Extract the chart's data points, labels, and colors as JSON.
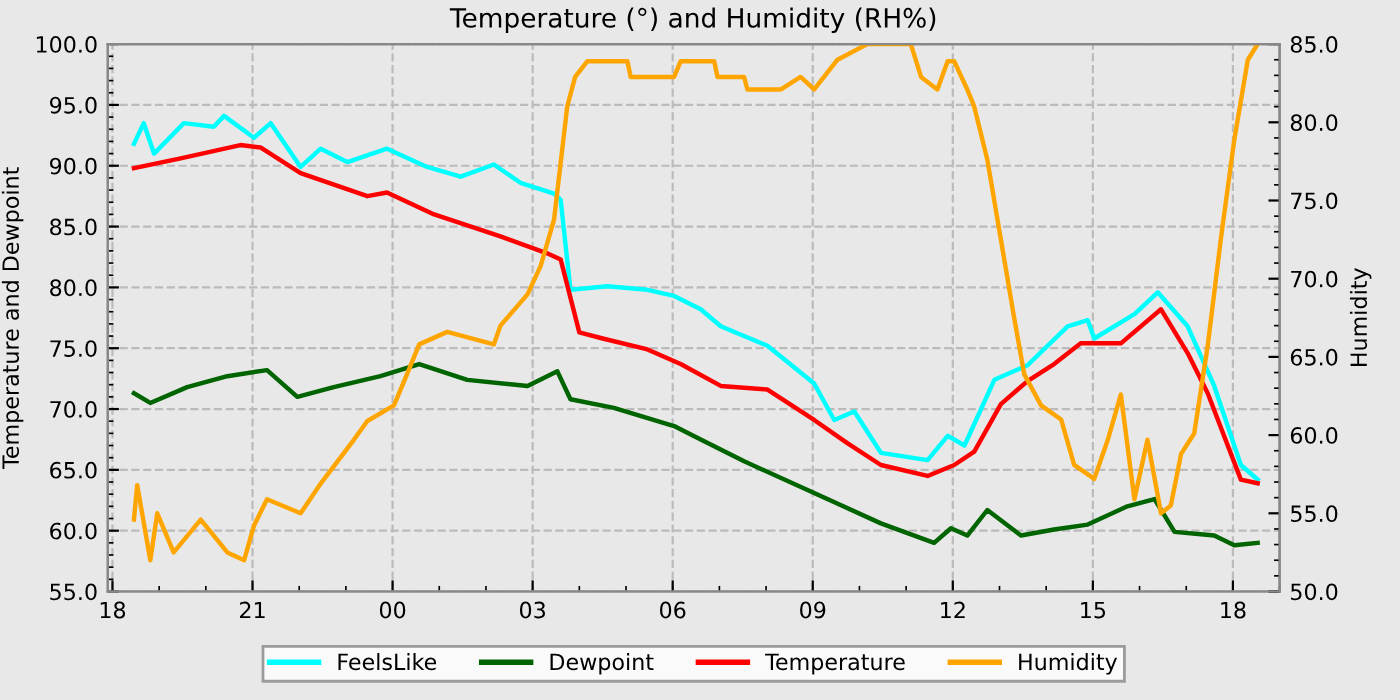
{
  "chart_data": {
    "type": "line",
    "title": "Temperature (°) and Humidity (RH%)",
    "ylabel": "Temperature and Dewpoint",
    "y2label": "Humidity",
    "xlim": [
      17.9,
      43.0
    ],
    "xticks": [
      {
        "value": 18,
        "label": "18"
      },
      {
        "value": 21,
        "label": "21"
      },
      {
        "value": 24,
        "label": "00"
      },
      {
        "value": 27,
        "label": "03"
      },
      {
        "value": 30,
        "label": "06"
      },
      {
        "value": 33,
        "label": "09"
      },
      {
        "value": 36,
        "label": "12"
      },
      {
        "value": 39,
        "label": "15"
      },
      {
        "value": 42,
        "label": "18"
      }
    ],
    "ylim": [
      55,
      100
    ],
    "yticks": [
      {
        "value": 55,
        "label": "55.0"
      },
      {
        "value": 60,
        "label": "60.0"
      },
      {
        "value": 65,
        "label": "65.0"
      },
      {
        "value": 70,
        "label": "70.0"
      },
      {
        "value": 75,
        "label": "75.0"
      },
      {
        "value": 80,
        "label": "80.0"
      },
      {
        "value": 85,
        "label": "85.0"
      },
      {
        "value": 90,
        "label": "90.0"
      },
      {
        "value": 95,
        "label": "95.0"
      },
      {
        "value": 100,
        "label": "100.0"
      }
    ],
    "y2lim": [
      50,
      85
    ],
    "y2ticks": [
      {
        "value": 50,
        "label": "50.0"
      },
      {
        "value": 55,
        "label": "55.0"
      },
      {
        "value": 60,
        "label": "60.0"
      },
      {
        "value": 65,
        "label": "65.0"
      },
      {
        "value": 70,
        "label": "70.0"
      },
      {
        "value": 75,
        "label": "75.0"
      },
      {
        "value": 80,
        "label": "80.0"
      },
      {
        "value": 85,
        "label": "85.0"
      }
    ],
    "grid": true,
    "legend": "bottom",
    "marker": "none",
    "line_style": "solid",
    "series": [
      {
        "name": "FeelsLike",
        "color": "#00ffff",
        "x": [
          18.46,
          18.67,
          18.89,
          19.53,
          20.17,
          20.39,
          21.03,
          21.39,
          22.03,
          22.46,
          23.03,
          23.88,
          24.74,
          25.46,
          26.17,
          26.74,
          27.46,
          27.6,
          27.81,
          28.6,
          29.46,
          30.03,
          30.6,
          31.03,
          32.03,
          33.03,
          33.46,
          33.89,
          34.46,
          35.46,
          35.89,
          36.25,
          36.89,
          37.6,
          38.46,
          38.89,
          39.03,
          39.89,
          40.39,
          41.03,
          41.6,
          42.17,
          42.53
        ],
        "values": [
          91.8,
          93.5,
          91.0,
          93.5,
          93.2,
          94.1,
          92.3,
          93.5,
          89.9,
          91.4,
          90.3,
          91.4,
          89.9,
          89.1,
          90.1,
          88.6,
          87.7,
          87.2,
          79.8,
          80.1,
          79.8,
          79.3,
          78.2,
          76.8,
          75.2,
          72.1,
          69.1,
          69.8,
          66.4,
          65.8,
          67.8,
          67.0,
          72.4,
          73.6,
          76.8,
          77.3,
          75.8,
          77.8,
          79.6,
          76.8,
          71.9,
          65.4,
          64.2
        ]
      },
      {
        "name": "Dewpoint",
        "color": "#006400",
        "x": [
          18.46,
          18.81,
          19.6,
          20.46,
          21.31,
          21.96,
          22.74,
          23.74,
          24.57,
          25.6,
          26.89,
          27.53,
          27.81,
          28.74,
          30.03,
          30.6,
          31.53,
          33.03,
          34.46,
          35.6,
          35.96,
          36.31,
          36.74,
          37.46,
          38.17,
          38.89,
          39.74,
          40.32,
          40.75,
          41.6,
          42.03,
          42.53
        ],
        "values": [
          71.3,
          70.5,
          71.8,
          72.7,
          73.2,
          71.0,
          71.8,
          72.7,
          73.7,
          72.4,
          71.9,
          73.1,
          70.8,
          70.1,
          68.6,
          67.5,
          65.7,
          63.1,
          60.6,
          59.0,
          60.2,
          59.6,
          61.7,
          59.6,
          60.1,
          60.5,
          62.0,
          62.6,
          59.9,
          59.6,
          58.8,
          59.0
        ]
      },
      {
        "name": "Temperature",
        "color": "#ff0000",
        "x": [
          18.46,
          19.46,
          20.74,
          21.17,
          22.03,
          23.46,
          23.88,
          24.89,
          26.31,
          27.31,
          27.6,
          28.0,
          28.5,
          29.46,
          30.17,
          31.03,
          32.03,
          33.03,
          33.74,
          34.46,
          35.46,
          36.03,
          36.46,
          37.03,
          37.6,
          38.17,
          38.74,
          39.6,
          40.46,
          41.03,
          41.46,
          42.17,
          42.53
        ],
        "values": [
          89.8,
          90.6,
          91.7,
          91.5,
          89.4,
          87.5,
          87.8,
          86.0,
          84.2,
          82.8,
          82.3,
          76.3,
          75.8,
          74.9,
          73.7,
          71.9,
          71.6,
          69.1,
          67.2,
          65.4,
          64.5,
          65.4,
          66.5,
          70.4,
          72.3,
          73.7,
          75.4,
          75.4,
          78.2,
          74.6,
          71.3,
          64.2,
          63.9
        ]
      },
      {
        "name": "Humidity",
        "color": "#ffa500",
        "axis": "y2",
        "x": [
          18.46,
          18.53,
          18.81,
          18.96,
          19.31,
          19.89,
          20.46,
          20.82,
          21.03,
          21.31,
          22.03,
          22.46,
          23.17,
          23.46,
          24.03,
          24.31,
          24.57,
          25.17,
          26.17,
          26.31,
          26.89,
          27.17,
          27.46,
          27.74,
          27.91,
          28.17,
          29.03,
          29.1,
          30.03,
          30.17,
          30.89,
          30.96,
          31.53,
          31.6,
          32.32,
          32.74,
          33.03,
          33.53,
          34.17,
          35.1,
          35.32,
          35.67,
          35.89,
          36.03,
          36.31,
          36.46,
          36.74,
          37.03,
          37.32,
          37.53,
          37.89,
          38.32,
          38.6,
          39.03,
          39.32,
          39.6,
          39.89,
          40.17,
          40.46,
          40.67,
          40.89,
          41.17,
          41.46,
          41.74,
          42.03,
          42.32,
          42.53
        ],
        "values": [
          54.6,
          56.8,
          52.0,
          55.0,
          52.5,
          54.6,
          52.5,
          52.0,
          54.2,
          55.9,
          55.0,
          56.9,
          59.7,
          60.9,
          61.9,
          63.9,
          65.8,
          66.6,
          65.8,
          67.0,
          69.0,
          70.8,
          73.8,
          81.0,
          82.9,
          83.9,
          83.9,
          82.9,
          82.9,
          83.9,
          83.9,
          82.9,
          82.9,
          82.1,
          82.1,
          82.9,
          82.1,
          84.0,
          85.0,
          85.0,
          82.9,
          82.1,
          83.9,
          83.9,
          82.1,
          81.0,
          77.6,
          72.5,
          67.4,
          63.9,
          61.9,
          61.0,
          58.1,
          57.2,
          59.7,
          62.6,
          55.9,
          59.7,
          55.0,
          55.5,
          58.8,
          60.1,
          65.7,
          72.5,
          78.9,
          84.0,
          85.0
        ]
      }
    ]
  }
}
